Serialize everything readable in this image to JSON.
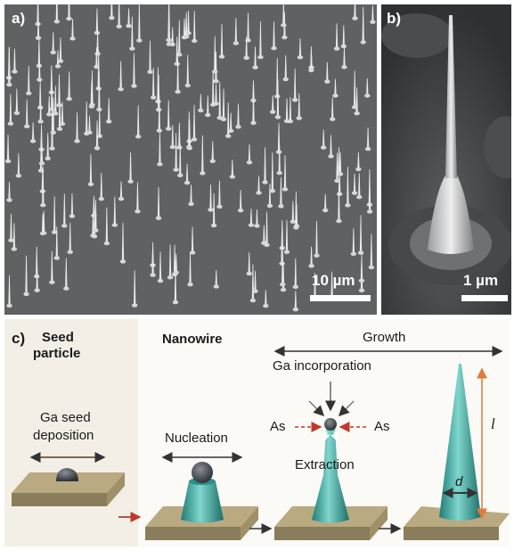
{
  "panel_a": {
    "label": "a)",
    "scale_label": "10 µm"
  },
  "panel_b": {
    "label": "b)",
    "scale_label": "1 µm"
  },
  "panel_c": {
    "label": "c)",
    "stage_seed_title": "Seed particle",
    "stage_seed_line1": "Seed",
    "stage_seed_line2": "particle",
    "stage_nanowire_title": "Nanowire",
    "growth_label": "Growth",
    "ga_seed_line1": "Ga seed",
    "ga_seed_line2": "deposition",
    "nucleation_label": "Nucleation",
    "ga_incorporation_label": "Ga incorporation",
    "as_left": "As",
    "as_right": "As",
    "extraction_label": "Extraction",
    "length_symbol": "l",
    "diameter_symbol": "d"
  },
  "colors": {
    "substrate_top": "#b9aa82",
    "substrate_side": "#8a7d5c",
    "nanowire": "#3aa8a0",
    "arrow_red": "#c0392b",
    "seed": "#555a60"
  }
}
